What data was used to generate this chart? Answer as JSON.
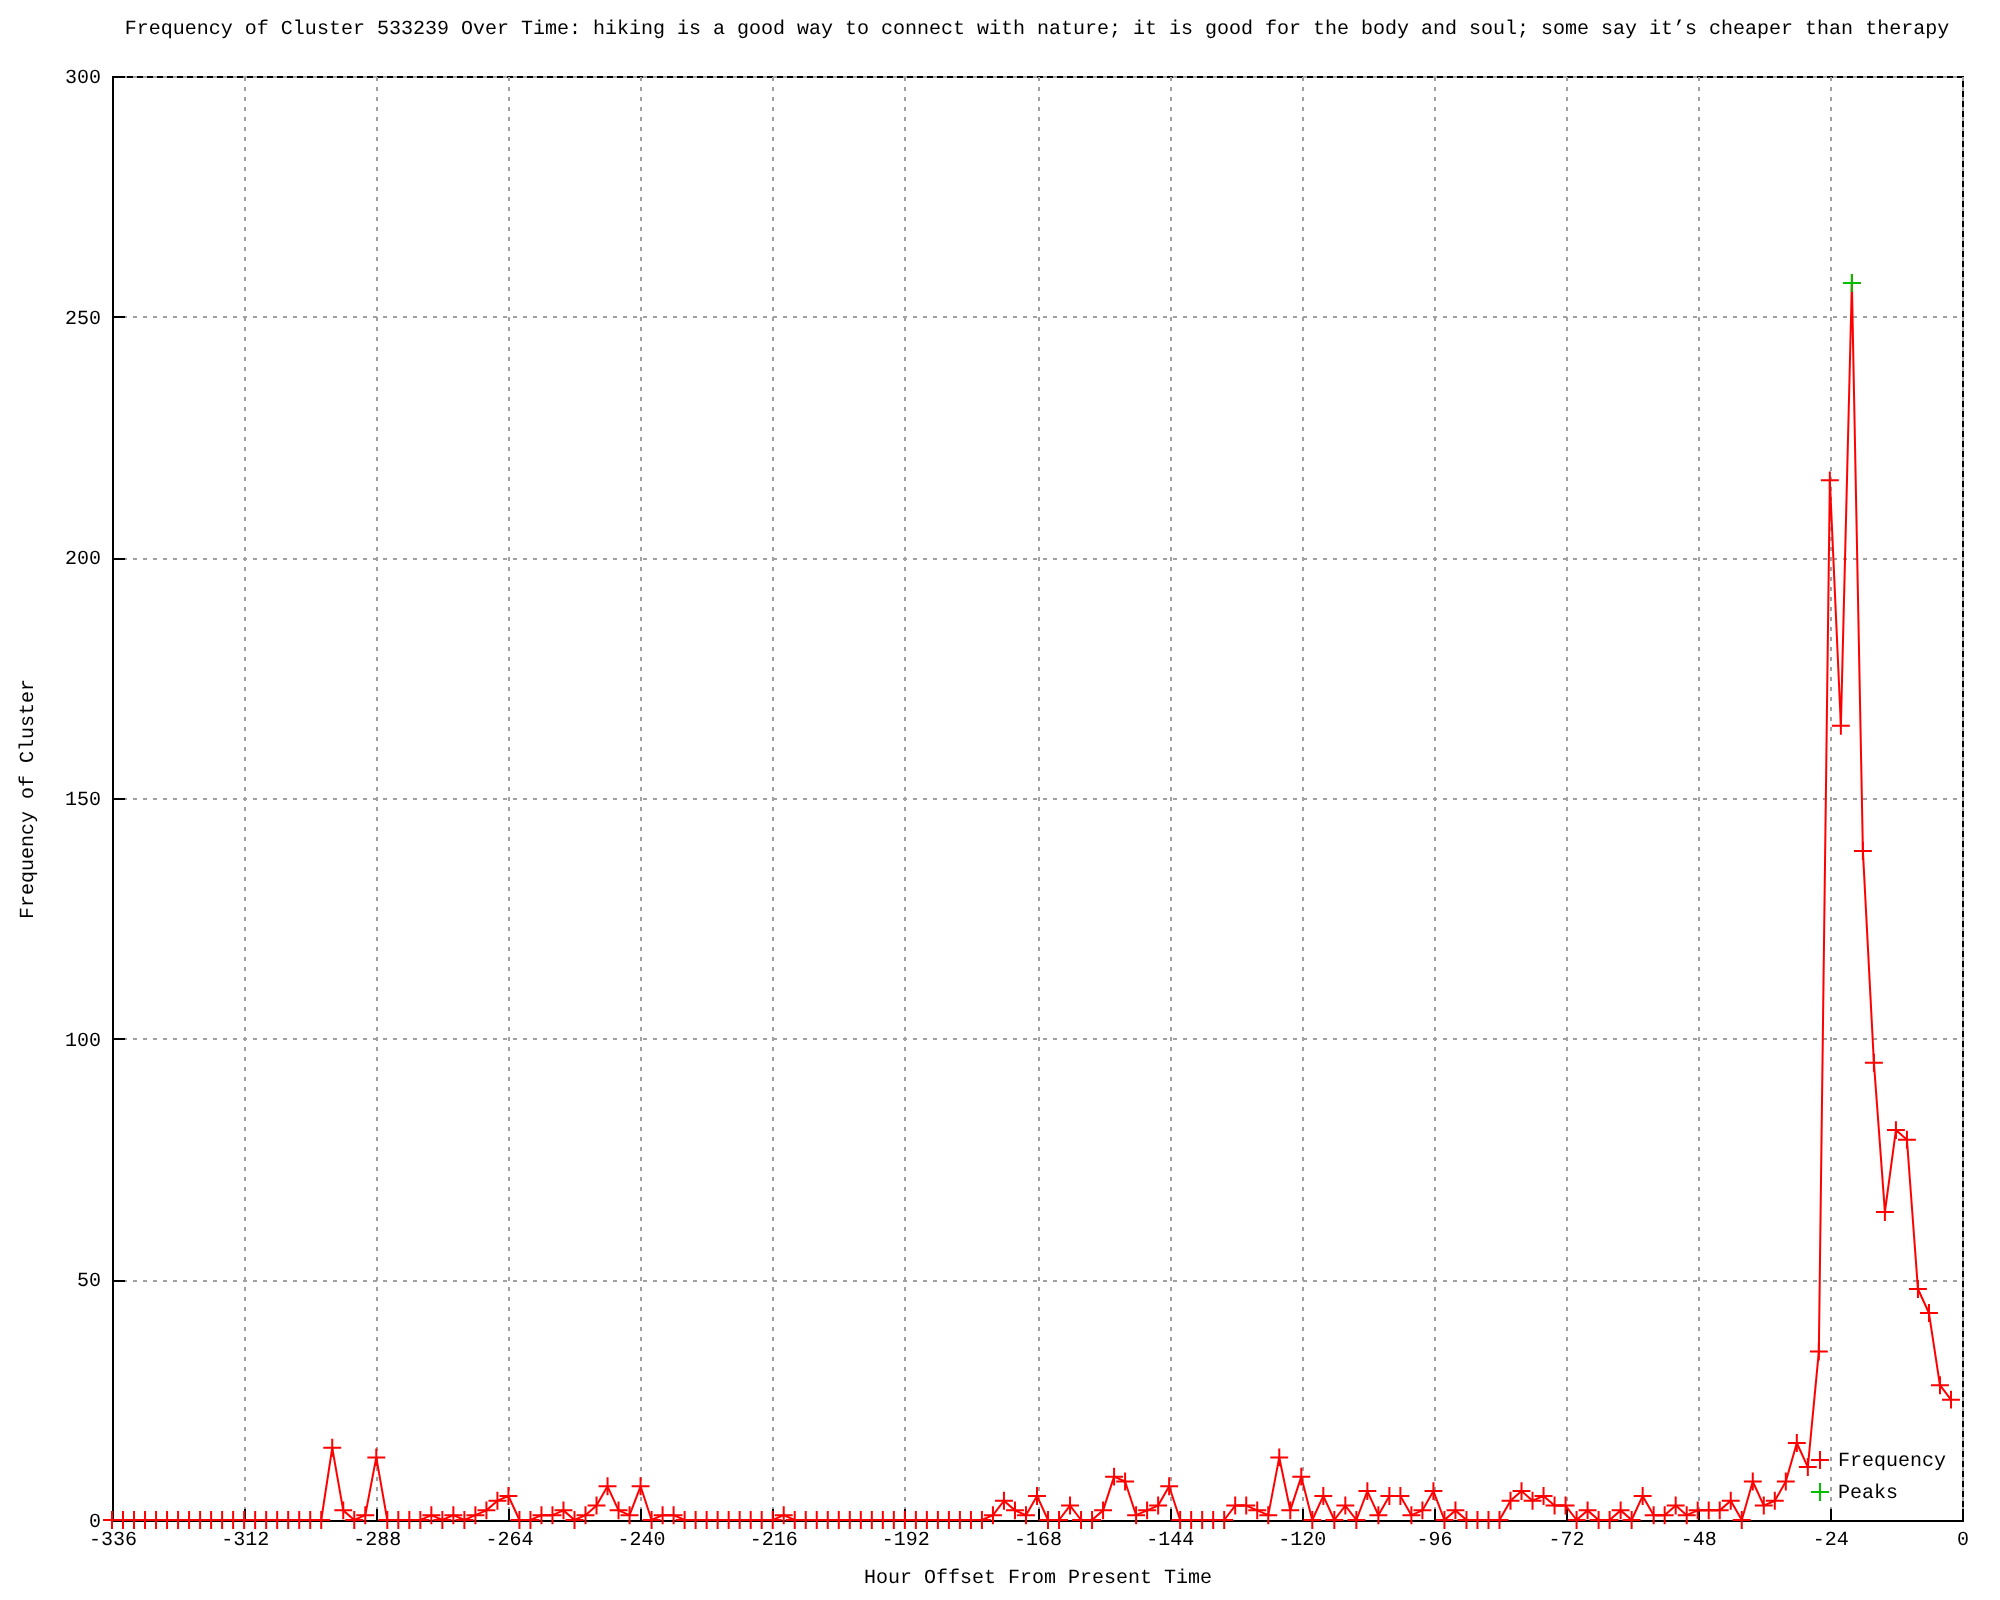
{
  "chart_data": {
    "type": "line",
    "title": "Frequency of Cluster 533239 Over Time: hiking is a good way to connect with nature; it is good for the body and soul; some say it’s cheaper than therapy",
    "xlabel": "Hour Offset From Present Time",
    "ylabel": "Frequency of Cluster",
    "x": [
      -336,
      -334,
      -332,
      -330,
      -328,
      -326,
      -324,
      -322,
      -320,
      -318,
      -316,
      -314,
      -312,
      -310,
      -308,
      -306,
      -304,
      -302,
      -300,
      -298,
      -296,
      -294,
      -292,
      -290,
      -288,
      -286,
      -284,
      -282,
      -280,
      -278,
      -276,
      -274,
      -272,
      -270,
      -268,
      -266,
      -264,
      -262,
      -260,
      -258,
      -256,
      -254,
      -252,
      -250,
      -248,
      -246,
      -244,
      -242,
      -240,
      -238,
      -236,
      -234,
      -232,
      -230,
      -228,
      -226,
      -224,
      -222,
      -220,
      -218,
      -216,
      -214,
      -212,
      -210,
      -208,
      -206,
      -204,
      -202,
      -200,
      -198,
      -196,
      -194,
      -192,
      -190,
      -188,
      -186,
      -184,
      -182,
      -180,
      -178,
      -176,
      -174,
      -172,
      -170,
      -168,
      -166,
      -164,
      -162,
      -160,
      -158,
      -156,
      -154,
      -152,
      -150,
      -148,
      -146,
      -144,
      -142,
      -140,
      -138,
      -136,
      -134,
      -132,
      -130,
      -128,
      -126,
      -124,
      -122,
      -120,
      -118,
      -116,
      -114,
      -112,
      -110,
      -108,
      -106,
      -104,
      -102,
      -100,
      -98,
      -96,
      -94,
      -92,
      -90,
      -88,
      -86,
      -84,
      -82,
      -80,
      -78,
      -76,
      -74,
      -72,
      -70,
      -68,
      -66,
      -64,
      -62,
      -60,
      -58,
      -56,
      -54,
      -52,
      -50,
      -48,
      -46,
      -44,
      -42,
      -40,
      -38,
      -36,
      -34,
      -32,
      -30,
      -28,
      -26,
      -24,
      -22,
      -20,
      -18,
      -16,
      -14,
      -12,
      -10,
      -8,
      -6,
      -4,
      -2
    ],
    "series": [
      {
        "name": "Frequency",
        "color": "#ff0000",
        "values": [
          0,
          0,
          0,
          0,
          0,
          0,
          0,
          0,
          0,
          0,
          0,
          0,
          0,
          0,
          0,
          0,
          0,
          0,
          0,
          0,
          15,
          2,
          0,
          1,
          13,
          0,
          0,
          0,
          0,
          1,
          0,
          1,
          0,
          1,
          2,
          4,
          5,
          0,
          0,
          1,
          1,
          2,
          0,
          1,
          3,
          7,
          2,
          1,
          7,
          0,
          1,
          1,
          0,
          0,
          0,
          0,
          0,
          0,
          0,
          0,
          0,
          1,
          0,
          0,
          0,
          0,
          0,
          0,
          0,
          0,
          0,
          0,
          0,
          0,
          0,
          0,
          0,
          0,
          0,
          0,
          1,
          4,
          2,
          1,
          5,
          0,
          0,
          3,
          0,
          0,
          2,
          9,
          8,
          1,
          2,
          3,
          7,
          0,
          0,
          0,
          0,
          0,
          3,
          3,
          2,
          1,
          13,
          2,
          9,
          0,
          5,
          0,
          3,
          0,
          6,
          1,
          5,
          5,
          1,
          2,
          6,
          0,
          2,
          0,
          0,
          0,
          0,
          4,
          6,
          4,
          5,
          3,
          3,
          0,
          2,
          0,
          0,
          2,
          0,
          5,
          1,
          1,
          3,
          1,
          2,
          2,
          2,
          4,
          0,
          8,
          3,
          4,
          8,
          16,
          11,
          35,
          216,
          165,
          257,
          139,
          95,
          64,
          81,
          79,
          48,
          43,
          28,
          25
        ]
      },
      {
        "name": "Peaks",
        "type": "scatter",
        "color": "#00c000",
        "x": [
          -20
        ],
        "values": [
          257
        ]
      }
    ],
    "xlim": [
      -336,
      0
    ],
    "xticks": [
      -336,
      -312,
      -288,
      -264,
      -240,
      -216,
      -192,
      -168,
      -144,
      -120,
      -96,
      -72,
      -48,
      -24,
      0
    ],
    "ylim": [
      0,
      300
    ],
    "yticks": [
      0,
      50,
      100,
      150,
      200,
      250,
      300
    ],
    "grid": true,
    "legend": "bottom right",
    "marker": "cross"
  }
}
